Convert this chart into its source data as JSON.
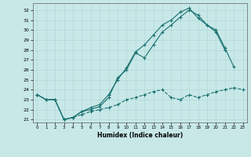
{
  "background_color": "#c8e8e8",
  "grid_color": "#b0d8d8",
  "line_color": "#1a7070",
  "xlabel": "Humidex (Indice chaleur)",
  "xlim": [
    -0.5,
    23.5
  ],
  "ylim": [
    20.7,
    32.7
  ],
  "yticks": [
    21,
    22,
    23,
    24,
    25,
    26,
    27,
    28,
    29,
    30,
    31,
    32
  ],
  "xticks": [
    0,
    1,
    2,
    3,
    4,
    5,
    6,
    7,
    8,
    9,
    10,
    11,
    12,
    13,
    14,
    15,
    16,
    17,
    18,
    19,
    20,
    21,
    22,
    23
  ],
  "line1_x": [
    0,
    1,
    2,
    3,
    4,
    5,
    6,
    7,
    8,
    9,
    10,
    11,
    12,
    13,
    14,
    15,
    16,
    17,
    18,
    19,
    20,
    21
  ],
  "line1_y": [
    23.5,
    23.0,
    23.0,
    21.0,
    21.2,
    21.8,
    22.0,
    22.3,
    23.2,
    25.2,
    26.0,
    27.7,
    27.2,
    28.5,
    29.8,
    30.5,
    31.3,
    32.0,
    31.5,
    30.5,
    29.8,
    28.0
  ],
  "line2_x": [
    0,
    1,
    2,
    3,
    4,
    5,
    6,
    7,
    8,
    9,
    10,
    11,
    12,
    13,
    14,
    15,
    16,
    17,
    18,
    19,
    20,
    21,
    22
  ],
  "line2_y": [
    23.5,
    23.0,
    23.0,
    21.0,
    21.2,
    21.8,
    22.2,
    22.5,
    23.5,
    25.0,
    26.2,
    27.8,
    28.5,
    29.5,
    30.5,
    31.0,
    31.8,
    32.2,
    31.2,
    30.5,
    30.0,
    28.2,
    26.3
  ],
  "line3_x": [
    0,
    1,
    2,
    3,
    4,
    5,
    6,
    7,
    8,
    9,
    10,
    11,
    12,
    13,
    14,
    15,
    16,
    17,
    18,
    19,
    20,
    21,
    22,
    23
  ],
  "line3_y": [
    23.5,
    23.0,
    23.0,
    21.0,
    21.2,
    21.5,
    21.8,
    22.0,
    22.2,
    22.5,
    23.0,
    23.2,
    23.5,
    23.8,
    24.0,
    23.2,
    23.0,
    23.5,
    23.2,
    23.5,
    23.8,
    24.0,
    24.2,
    24.0
  ]
}
